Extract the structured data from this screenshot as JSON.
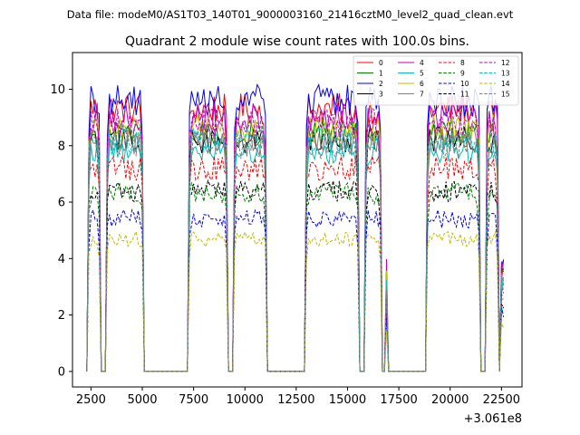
{
  "chart_data": {
    "type": "line",
    "suptitle": "Data file: modeM0/AS1T03_140T01_9000003160_21416cztM0_level2_quad_clean.evt",
    "title": "Quadrant 2 module wise count rates with 100.0s bins.",
    "xlabel": "",
    "ylabel": "",
    "x_offset_label": "+3.061e8",
    "xlim": [
      1600,
      23500
    ],
    "ylim": [
      -0.55,
      11.3
    ],
    "x_ticks": [
      2500,
      5000,
      7500,
      10000,
      12500,
      15000,
      17500,
      20000,
      22500
    ],
    "x_tick_labels": [
      "2500",
      "5000",
      "7500",
      "10000",
      "12500",
      "15000",
      "17500",
      "20000",
      "22500"
    ],
    "y_ticks": [
      0,
      2,
      4,
      6,
      8,
      10
    ],
    "y_tick_labels": [
      "0",
      "2",
      "4",
      "6",
      "8",
      "10"
    ],
    "grid": false,
    "legend_position": "top-right",
    "segments": [
      [
        2400,
        2900
      ],
      [
        3300,
        5000
      ],
      [
        7300,
        9100
      ],
      [
        9500,
        11000
      ],
      [
        13000,
        15500
      ],
      [
        15900,
        16600
      ],
      [
        16900,
        16900
      ],
      [
        18900,
        21400
      ],
      [
        21800,
        22300
      ],
      [
        22500,
        22600
      ]
    ],
    "pattern": {
      "x_breakpoints": [
        2400,
        2900,
        3000,
        3200,
        3300,
        5000,
        5200,
        7200,
        7300,
        9100,
        9200,
        9400,
        9500,
        11000,
        11100,
        12900,
        13000,
        15500,
        15600,
        15800,
        15900,
        16600,
        16700,
        16800,
        16900,
        17000,
        18800,
        18900,
        21400,
        21500,
        21700,
        21800,
        22300,
        22400,
        22500,
        22600
      ],
      "note": "rate is 0 between segments; each series ramps to its level inside segments"
    },
    "series": [
      {
        "name": "0",
        "level": 9.3,
        "color": "#ff0000",
        "dash": "solid"
      },
      {
        "name": "1",
        "level": 8.4,
        "color": "#008000",
        "dash": "solid"
      },
      {
        "name": "2",
        "level": 9.6,
        "color": "#0000ff",
        "dash": "solid"
      },
      {
        "name": "3",
        "level": 8.2,
        "color": "#000000",
        "dash": "solid"
      },
      {
        "name": "4",
        "level": 9.0,
        "color": "#bf00bf",
        "dash": "solid"
      },
      {
        "name": "5",
        "level": 7.8,
        "color": "#00bfbf",
        "dash": "solid"
      },
      {
        "name": "6",
        "level": 8.6,
        "color": "#bfbf00",
        "dash": "solid"
      },
      {
        "name": "7",
        "level": 8.1,
        "color": "#808080",
        "dash": "solid"
      },
      {
        "name": "8",
        "level": 7.2,
        "color": "#ff0000",
        "dash": "dashed"
      },
      {
        "name": "9",
        "level": 6.3,
        "color": "#008000",
        "dash": "dashed"
      },
      {
        "name": "10",
        "level": 5.4,
        "color": "#0000ff",
        "dash": "dashed"
      },
      {
        "name": "11",
        "level": 6.4,
        "color": "#000000",
        "dash": "dashed"
      },
      {
        "name": "12",
        "level": 8.8,
        "color": "#bf00bf",
        "dash": "dashed"
      },
      {
        "name": "13",
        "level": 8.2,
        "color": "#00bfbf",
        "dash": "dashed"
      },
      {
        "name": "14",
        "level": 4.7,
        "color": "#bfbf00",
        "dash": "dashed"
      },
      {
        "name": "15",
        "level": 8.0,
        "color": "#808080",
        "dash": "dashed"
      }
    ]
  }
}
